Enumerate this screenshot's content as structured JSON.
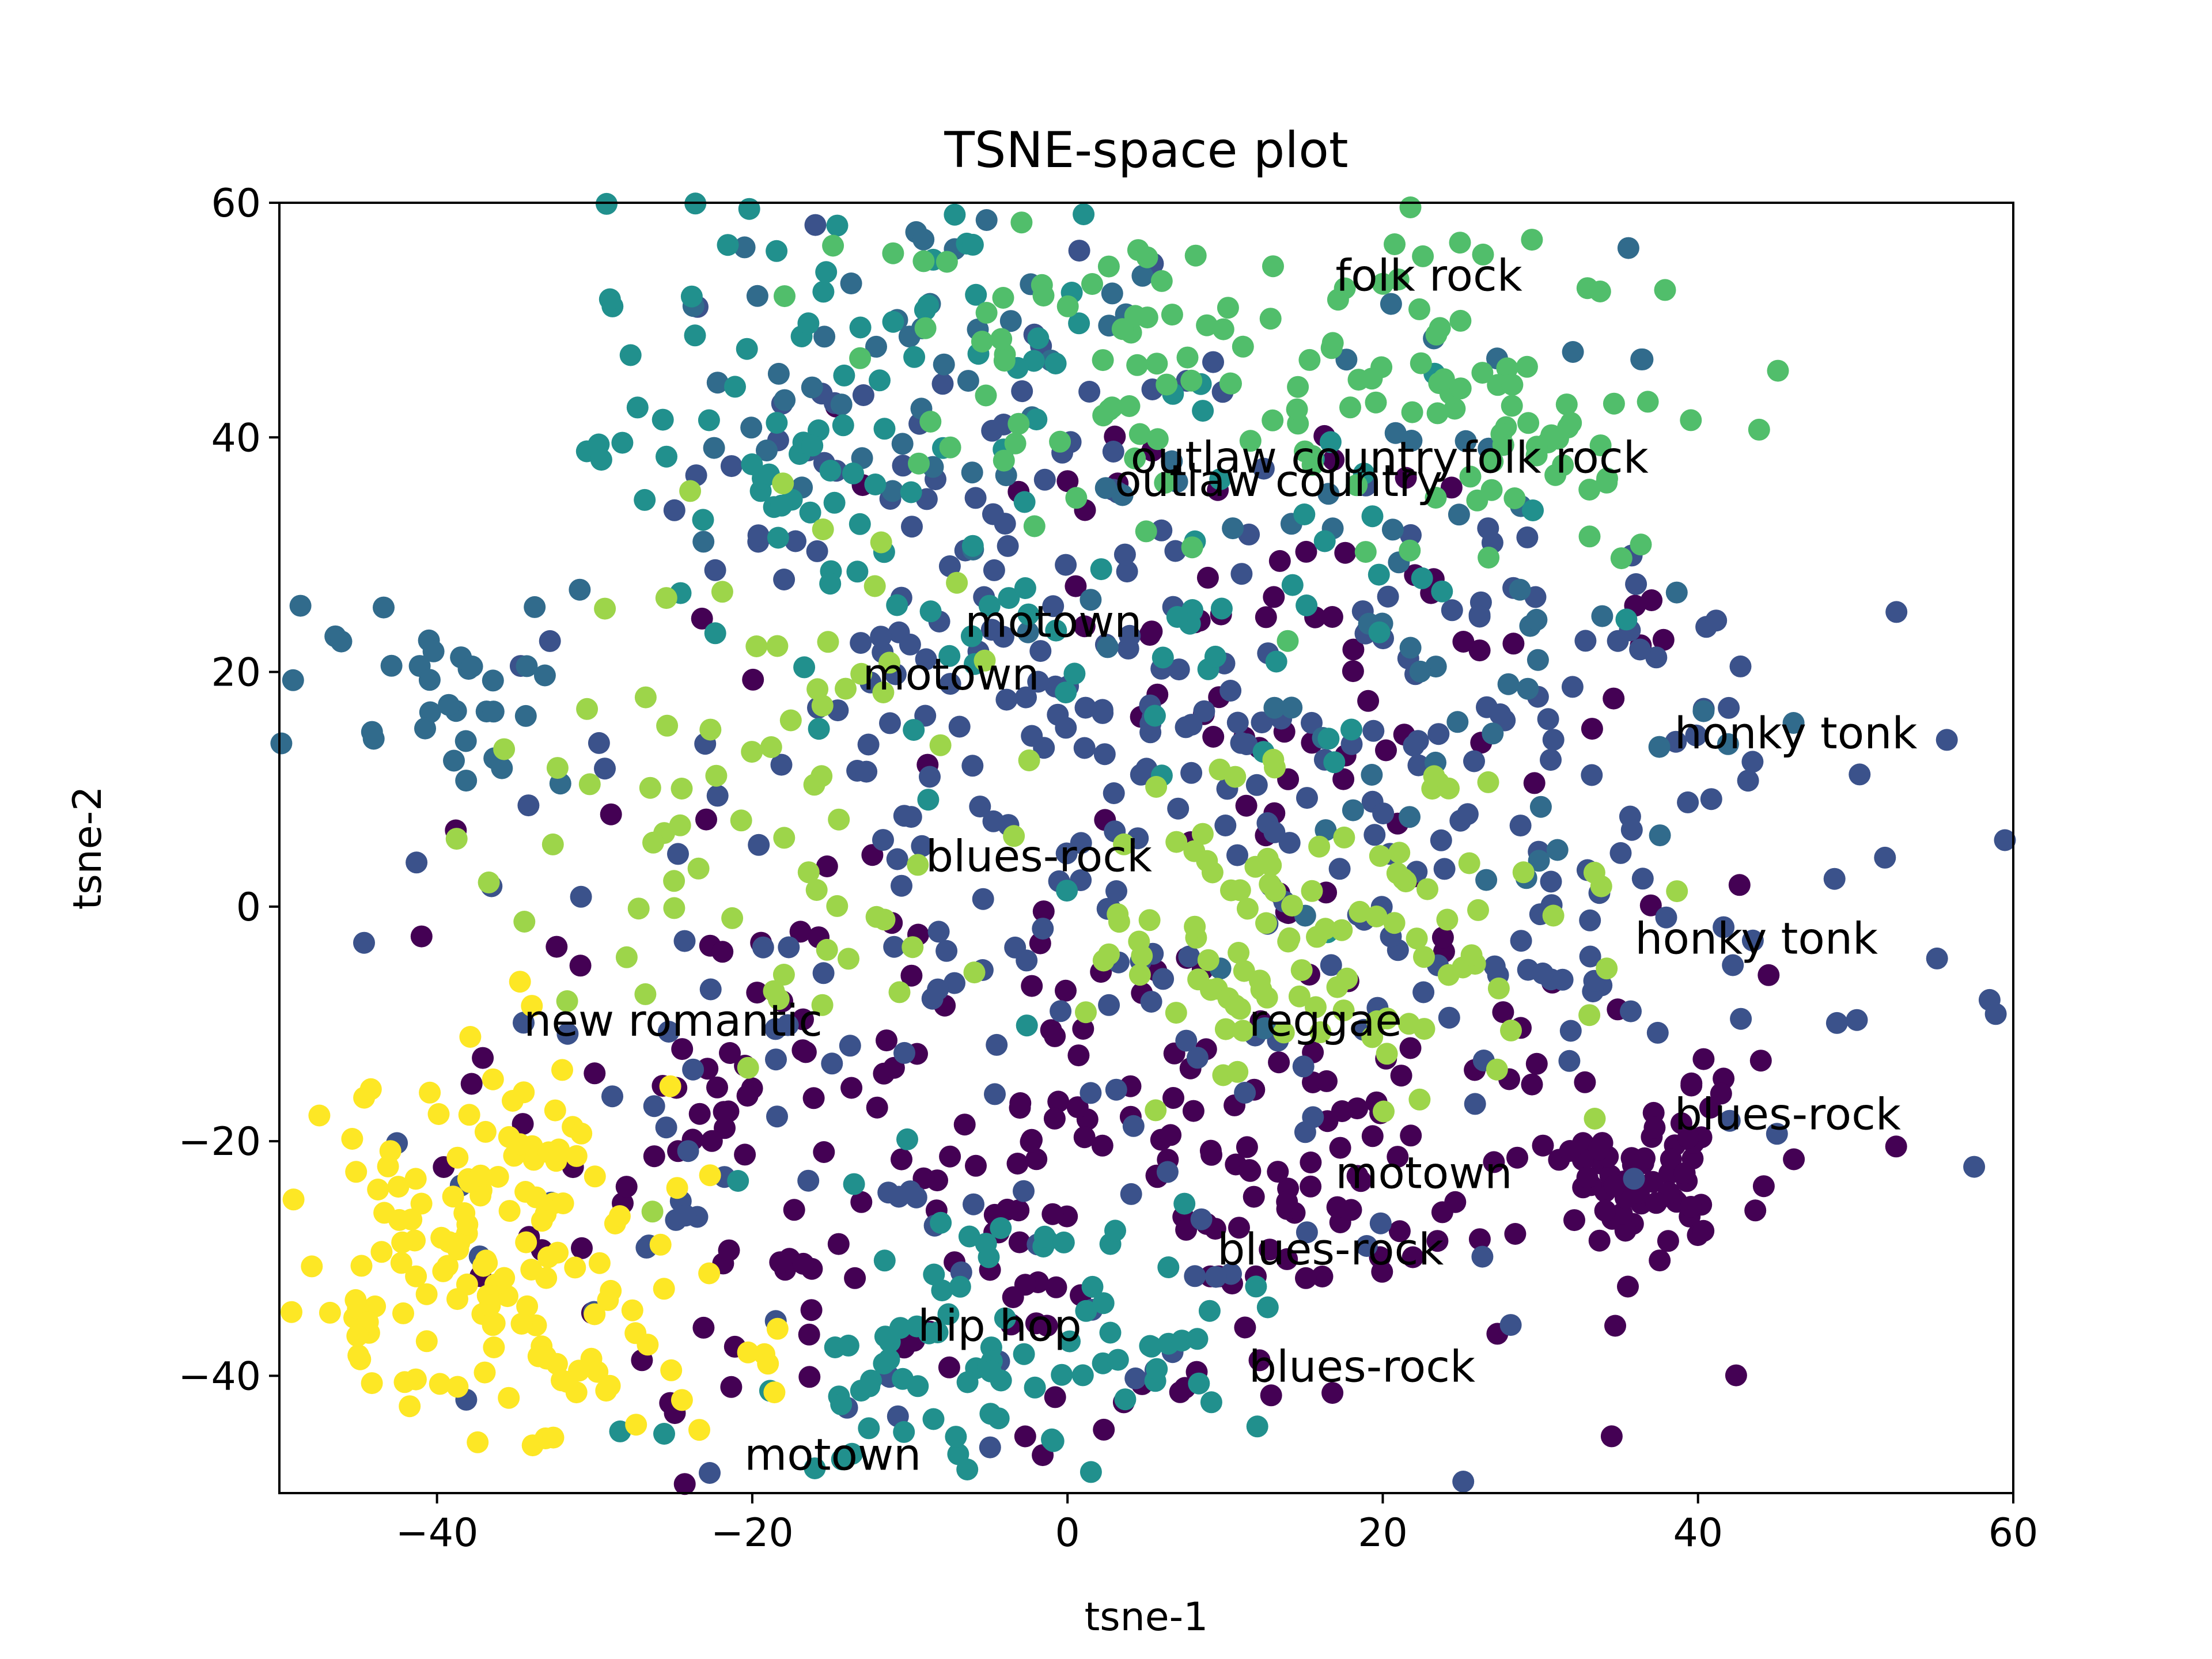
{
  "chart_data": {
    "type": "scatter",
    "title": "TSNE-space plot",
    "xlabel": "tsne-1",
    "ylabel": "tsne-2",
    "xlim": [
      -50,
      60
    ],
    "ylim": [
      -50,
      60
    ],
    "xticks": [
      -40,
      -20,
      0,
      20,
      40,
      60
    ],
    "yticks": [
      -40,
      -20,
      0,
      20,
      40,
      60
    ],
    "grid": false,
    "colormap": "viridis",
    "colormap_stops": [
      "#440154",
      "#3b528b",
      "#21908d",
      "#5dc963",
      "#fde725"
    ],
    "annotations": [
      {
        "text": "folk rock",
        "x": 17,
        "y": 52.5
      },
      {
        "text": "outlaw country",
        "x": 4,
        "y": 37
      },
      {
        "text": "folk rock",
        "x": 25,
        "y": 37
      },
      {
        "text": "outlaw country",
        "x": 3,
        "y": 35
      },
      {
        "text": "motown",
        "x": -6.5,
        "y": 23
      },
      {
        "text": "motown",
        "x": -13,
        "y": 18.5
      },
      {
        "text": "honky tonk",
        "x": 38.5,
        "y": 13.5
      },
      {
        "text": "blues-rock",
        "x": -9,
        "y": 3
      },
      {
        "text": "honky tonk",
        "x": 36,
        "y": -4
      },
      {
        "text": "new romantic",
        "x": -34.5,
        "y": -11
      },
      {
        "text": "reggae",
        "x": 11.5,
        "y": -11
      },
      {
        "text": "blues-rock",
        "x": 38.5,
        "y": -19
      },
      {
        "text": "motown",
        "x": 17,
        "y": -24
      },
      {
        "text": "blues-rock",
        "x": 9.5,
        "y": -30.5
      },
      {
        "text": "hip hop",
        "x": -9.5,
        "y": -37
      },
      {
        "text": "blues-rock",
        "x": 11.5,
        "y": -40.5
      },
      {
        "text": "motown",
        "x": -20.5,
        "y": -48
      }
    ],
    "clusters": [
      {
        "color_value": 0.0,
        "cx": 37,
        "cy": -22,
        "sx": 4,
        "sy": 4,
        "n": 70
      },
      {
        "color_value": 0.0,
        "cx": 10,
        "cy": -22,
        "sx": 14,
        "sy": 12,
        "n": 170
      },
      {
        "color_value": 0.0,
        "cx": -20,
        "cy": -20,
        "sx": 10,
        "sy": 14,
        "n": 90
      },
      {
        "color_value": 0.0,
        "cx": 15,
        "cy": 20,
        "sx": 16,
        "sy": 10,
        "n": 70
      },
      {
        "color_value": 0.25,
        "cx": 25,
        "cy": 5,
        "sx": 15,
        "sy": 17,
        "n": 170
      },
      {
        "color_value": 0.25,
        "cx": -5,
        "cy": 25,
        "sx": 12,
        "sy": 15,
        "n": 150
      },
      {
        "color_value": 0.25,
        "cx": -15,
        "cy": -20,
        "sx": 14,
        "sy": 14,
        "n": 80
      },
      {
        "color_value": 0.35,
        "cx": -40,
        "cy": 18,
        "sx": 5,
        "sy": 5,
        "n": 35
      },
      {
        "color_value": 0.35,
        "cx": 25,
        "cy": 25,
        "sx": 10,
        "sy": 15,
        "n": 60
      },
      {
        "color_value": 0.35,
        "cx": -10,
        "cy": 45,
        "sx": 10,
        "sy": 10,
        "n": 50
      },
      {
        "color_value": 0.5,
        "cx": -5,
        "cy": -38,
        "sx": 8,
        "sy": 6,
        "n": 90
      },
      {
        "color_value": 0.5,
        "cx": -15,
        "cy": 45,
        "sx": 8,
        "sy": 10,
        "n": 80
      },
      {
        "color_value": 0.5,
        "cx": 5,
        "cy": 25,
        "sx": 12,
        "sy": 12,
        "n": 60
      },
      {
        "color_value": 0.7,
        "cx": 10,
        "cy": 48,
        "sx": 12,
        "sy": 8,
        "n": 110
      },
      {
        "color_value": 0.7,
        "cx": 28,
        "cy": 40,
        "sx": 6,
        "sy": 5,
        "n": 40
      },
      {
        "color_value": 0.85,
        "cx": 15,
        "cy": -3,
        "sx": 10,
        "sy": 7,
        "n": 110
      },
      {
        "color_value": 0.85,
        "cx": -18,
        "cy": 10,
        "sx": 10,
        "sy": 12,
        "n": 70
      },
      {
        "color_value": 1.0,
        "cx": -36,
        "cy": -28,
        "sx": 6,
        "sy": 8,
        "n": 140
      },
      {
        "color_value": 1.0,
        "cx": -28,
        "cy": -40,
        "sx": 5,
        "sy": 5,
        "n": 20
      }
    ]
  }
}
